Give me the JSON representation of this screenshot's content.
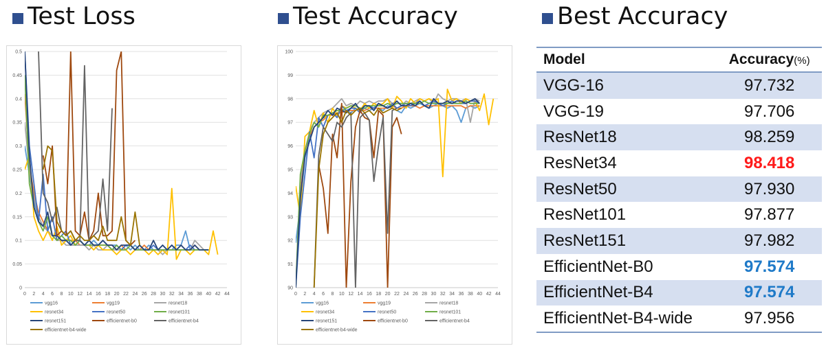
{
  "titles": {
    "loss": "Test Loss",
    "accuracy": "Test Accuracy",
    "best": "Best Accuracy"
  },
  "colors": {
    "title_marker": "#2f4f8f",
    "highlight_best": "#ff1a1a",
    "highlight_low": "#1f7ac8",
    "row_band": "#d6dff0"
  },
  "table": {
    "header_model": "Model",
    "header_accuracy": "Accuracy",
    "header_unit": "(%)",
    "rows": [
      {
        "model": "VGG-16",
        "accuracy": "97.732"
      },
      {
        "model": "VGG-19",
        "accuracy": "97.706"
      },
      {
        "model": "ResNet18",
        "accuracy": "98.259"
      },
      {
        "model": "ResNet34",
        "accuracy": "98.418"
      },
      {
        "model": "ResNet50",
        "accuracy": "97.930"
      },
      {
        "model": "ResNet101",
        "accuracy": "97.877"
      },
      {
        "model": "ResNet151",
        "accuracy": "97.982"
      },
      {
        "model": "EfficientNet-B0",
        "accuracy": "97.574"
      },
      {
        "model": "EfficientNet-B4",
        "accuracy": "97.574"
      },
      {
        "model": "EfficientNet-B4-wide",
        "accuracy": "97.956"
      }
    ]
  },
  "chart_data": [
    {
      "type": "line",
      "title": "Test Loss",
      "xlim": [
        0,
        44
      ],
      "ylim": [
        0,
        0.5
      ],
      "xticks": [
        "0",
        "2",
        "4",
        "6",
        "8",
        "10",
        "12",
        "14",
        "16",
        "18",
        "20",
        "22",
        "24",
        "26",
        "28",
        "30",
        "32",
        "34",
        "36",
        "38",
        "40",
        "42",
        "44"
      ],
      "yticks": [
        "0",
        "0.05",
        "0.1",
        "0.15",
        "0.2",
        "0.25",
        "0.3",
        "0.35",
        "0.4",
        "0.45",
        "0.5"
      ],
      "grid": true,
      "legend": "bottom",
      "series": [
        {
          "name": "vgg16",
          "color": "#5b9bd5",
          "values": [
            0.3,
            0.24,
            0.18,
            0.15,
            0.13,
            0.12,
            0.11,
            0.11,
            0.1,
            0.1,
            0.1,
            0.09,
            0.1,
            0.09,
            0.09,
            0.1,
            0.09,
            0.09,
            0.09,
            0.09,
            0.09,
            0.08,
            0.09,
            0.08,
            0.09,
            0.08,
            0.08,
            0.09,
            0.08,
            0.08,
            0.09,
            0.08,
            0.08,
            0.09,
            0.09,
            0.12,
            0.08,
            0.09,
            0.08,
            0.08,
            0.08
          ]
        },
        {
          "name": "vgg19",
          "color": "#ed7d31",
          "values": [
            0.41,
            0.26,
            0.2,
            0.16,
            0.14,
            0.12,
            0.11,
            0.11,
            0.1,
            0.1,
            0.1,
            0.1,
            0.09,
            0.09,
            0.09,
            0.09,
            0.09,
            0.09,
            0.09,
            0.09,
            0.08,
            0.09,
            0.08,
            0.09,
            0.08,
            0.08,
            0.09,
            0.08,
            0.08,
            0.08,
            0.08,
            0.08,
            0.08,
            0.08,
            0.08,
            0.08,
            0.08,
            0.09,
            0.08,
            0.08,
            0.08
          ]
        },
        {
          "name": "resnet18",
          "color": "#a5a5a5",
          "values": [
            0.35,
            0.25,
            0.19,
            0.15,
            0.13,
            0.12,
            0.11,
            0.1,
            0.1,
            0.09,
            0.09,
            0.09,
            0.09,
            0.09,
            0.08,
            0.09,
            0.08,
            0.08,
            0.09,
            0.08,
            0.08,
            0.08,
            0.08,
            0.09,
            0.08,
            0.08,
            0.08,
            0.08,
            0.08,
            0.08,
            0.07,
            0.08,
            0.08,
            0.08,
            0.09,
            0.08,
            0.08,
            0.1,
            0.09,
            0.08,
            0.08
          ]
        },
        {
          "name": "resnet34",
          "color": "#ffc000",
          "values": [
            0.25,
            0.28,
            0.15,
            0.12,
            0.1,
            0.12,
            0.1,
            0.13,
            0.09,
            0.1,
            0.11,
            0.09,
            0.1,
            0.09,
            0.09,
            0.08,
            0.09,
            0.08,
            0.08,
            0.08,
            0.07,
            0.08,
            0.08,
            0.07,
            0.08,
            0.09,
            0.08,
            0.07,
            0.08,
            0.07,
            0.08,
            0.07,
            0.21,
            0.06,
            0.08,
            0.08,
            0.07,
            0.08,
            0.08,
            0.08,
            0.07,
            0.12,
            0.07
          ]
        },
        {
          "name": "resnet50",
          "color": "#4472c4",
          "values": [
            0.5,
            0.3,
            0.22,
            0.14,
            0.24,
            0.12,
            0.15,
            0.1,
            0.11,
            0.12,
            0.09,
            0.1,
            0.1,
            0.09,
            0.1,
            0.09,
            0.09,
            0.1,
            0.09,
            0.08,
            0.09,
            0.08,
            0.09,
            0.09,
            0.08,
            0.09,
            0.08,
            0.08,
            0.09,
            0.08,
            0.08,
            0.08,
            0.09,
            0.08,
            0.08,
            0.08,
            0.09,
            0.08,
            0.08,
            0.08,
            0.08
          ]
        },
        {
          "name": "resnet101",
          "color": "#70ad47",
          "values": [
            0.45,
            0.22,
            0.17,
            0.14,
            0.12,
            0.15,
            0.11,
            0.1,
            0.11,
            0.1,
            0.1,
            0.09,
            0.1,
            0.09,
            0.09,
            0.09,
            0.09,
            0.09,
            0.09,
            0.08,
            0.09,
            0.08,
            0.08,
            0.09,
            0.08,
            0.08,
            0.08,
            0.08,
            0.08,
            0.08,
            0.08,
            0.08,
            0.08,
            0.08,
            0.08,
            0.08,
            0.08,
            0.08,
            0.08,
            0.08,
            0.08
          ]
        },
        {
          "name": "resnet151",
          "color": "#264478",
          "values": [
            0.5,
            0.28,
            0.17,
            0.14,
            0.13,
            0.16,
            0.11,
            0.11,
            0.1,
            0.1,
            0.09,
            0.1,
            0.1,
            0.09,
            0.1,
            0.09,
            0.09,
            0.1,
            0.09,
            0.09,
            0.08,
            0.09,
            0.09,
            0.09,
            0.08,
            0.09,
            0.08,
            0.08,
            0.1,
            0.08,
            0.09,
            0.08,
            0.09,
            0.08,
            0.09,
            0.08,
            0.08,
            0.09,
            0.08,
            0.08,
            0.08
          ]
        },
        {
          "name": "efficientnet-b0",
          "color": "#9e480e",
          "values": [
            null,
            null,
            null,
            null,
            0.28,
            0.22,
            0.3,
            0.11,
            0.12,
            0.11,
            0.5,
            0.12,
            0.11,
            0.16,
            0.1,
            0.12,
            0.2,
            0.11,
            0.11,
            0.12,
            0.46,
            0.5,
            0.1,
            0.09,
            0.1
          ]
        },
        {
          "name": "efficientnet-b4",
          "color": "#636363",
          "values": [
            null,
            null,
            null,
            0.5,
            0.2,
            0.18,
            0.14,
            0.17,
            0.12,
            0.11,
            0.12,
            0.1,
            0.1,
            0.47,
            0.1,
            0.11,
            0.12,
            0.23,
            0.12,
            0.38
          ]
        },
        {
          "name": "efficientnet-b4-wide",
          "color": "#997300",
          "values": [
            null,
            null,
            null,
            null,
            0.25,
            0.3,
            0.29,
            0.14,
            0.12,
            0.11,
            0.12,
            0.1,
            0.11,
            0.1,
            0.1,
            0.11,
            0.1,
            0.13,
            0.1,
            0.1,
            0.1,
            0.15,
            0.1,
            0.09,
            0.16,
            0.09
          ]
        }
      ]
    },
    {
      "type": "line",
      "title": "Test Accuracy",
      "xlim": [
        0,
        44
      ],
      "ylim": [
        90,
        100
      ],
      "xticks": [
        "0",
        "2",
        "4",
        "6",
        "8",
        "10",
        "12",
        "14",
        "16",
        "18",
        "20",
        "22",
        "24",
        "26",
        "28",
        "30",
        "32",
        "34",
        "36",
        "38",
        "40",
        "42",
        "44"
      ],
      "yticks": [
        "90",
        "91",
        "92",
        "93",
        "94",
        "95",
        "96",
        "97",
        "98",
        "99",
        "100"
      ],
      "grid": true,
      "legend": "bottom",
      "series": [
        {
          "name": "vgg16",
          "color": "#5b9bd5",
          "values": [
            91.9,
            93.5,
            95.5,
            96.2,
            96.8,
            97.0,
            97.2,
            97.3,
            97.4,
            97.3,
            97.5,
            97.5,
            97.4,
            97.6,
            97.5,
            97.6,
            97.5,
            97.6,
            97.6,
            97.5,
            97.7,
            97.6,
            97.5,
            97.4,
            97.7,
            97.6,
            97.7,
            97.8,
            97.7,
            97.6,
            97.7,
            97.8,
            97.7,
            97.6,
            97.7,
            97.5,
            97.0,
            97.6,
            97.7,
            97.6,
            97.7
          ]
        },
        {
          "name": "vgg19",
          "color": "#ed7d31",
          "values": [
            90.0,
            94.0,
            95.8,
            96.4,
            96.8,
            97.0,
            97.1,
            97.3,
            97.3,
            97.4,
            97.4,
            97.5,
            97.5,
            97.5,
            97.6,
            97.5,
            97.6,
            97.6,
            97.6,
            97.6,
            97.6,
            97.7,
            97.6,
            97.6,
            97.7,
            97.7,
            97.7,
            97.6,
            97.7,
            97.7,
            97.7,
            97.7,
            97.7,
            97.7,
            97.7,
            97.7,
            97.7,
            97.6,
            97.7,
            97.7,
            97.7
          ]
        },
        {
          "name": "resnet18",
          "color": "#a5a5a5",
          "values": [
            90.0,
            94.5,
            95.8,
            96.6,
            97.0,
            97.2,
            97.4,
            97.5,
            97.6,
            97.8,
            98.0,
            97.7,
            97.8,
            97.7,
            97.9,
            97.8,
            97.9,
            97.8,
            97.9,
            97.9,
            98.0,
            97.8,
            97.9,
            97.7,
            97.9,
            97.8,
            97.9,
            98.0,
            97.9,
            98.0,
            97.8,
            98.2,
            98.0,
            97.9,
            98.0,
            98.0,
            97.9,
            98.0,
            97.0,
            98.0,
            97.9
          ]
        },
        {
          "name": "resnet34",
          "color": "#ffc000",
          "values": [
            94.3,
            93.0,
            96.4,
            96.6,
            97.5,
            96.8,
            97.4,
            97.0,
            97.6,
            97.3,
            97.7,
            97.6,
            97.7,
            97.6,
            97.5,
            97.8,
            97.6,
            97.8,
            97.7,
            97.8,
            98.0,
            97.6,
            98.1,
            97.9,
            97.6,
            98.0,
            97.8,
            98.0,
            97.9,
            98.0,
            97.9,
            98.0,
            94.7,
            98.4,
            97.9,
            98.0,
            97.8,
            98.0,
            97.9,
            97.9,
            97.5,
            98.2,
            96.9,
            98.0
          ]
        },
        {
          "name": "resnet50",
          "color": "#4472c4",
          "values": [
            90.0,
            93.0,
            94.8,
            96.6,
            95.5,
            97.2,
            96.8,
            97.3,
            97.4,
            97.2,
            97.7,
            97.5,
            97.6,
            97.6,
            97.4,
            97.7,
            97.7,
            97.6,
            97.8,
            97.7,
            97.6,
            97.8,
            97.6,
            97.7,
            97.8,
            97.7,
            97.8,
            97.9,
            97.7,
            97.8,
            97.9,
            97.8,
            97.7,
            97.8,
            97.9,
            97.8,
            97.8,
            97.8,
            97.9,
            97.9,
            97.8
          ]
        },
        {
          "name": "resnet101",
          "color": "#70ad47",
          "values": [
            90.0,
            94.8,
            95.8,
            96.5,
            97.0,
            96.8,
            97.3,
            97.3,
            97.4,
            97.5,
            97.5,
            97.6,
            97.7,
            97.7,
            97.6,
            97.6,
            97.7,
            97.7,
            97.7,
            97.7,
            97.8,
            97.7,
            97.8,
            97.8,
            97.8,
            97.8,
            97.8,
            97.8,
            97.9,
            97.8,
            97.8,
            97.8,
            97.8,
            97.8,
            97.8,
            97.8,
            97.8,
            97.9,
            97.8,
            97.8,
            97.8
          ]
        },
        {
          "name": "resnet151",
          "color": "#264478",
          "values": [
            90.0,
            93.8,
            95.6,
            96.2,
            96.8,
            97.0,
            97.2,
            97.5,
            97.3,
            97.6,
            97.5,
            97.4,
            97.6,
            97.8,
            97.5,
            97.7,
            97.7,
            97.5,
            97.8,
            97.7,
            97.6,
            97.7,
            97.9,
            97.7,
            97.7,
            97.8,
            97.7,
            97.9,
            97.7,
            97.6,
            98.0,
            97.8,
            97.8,
            97.9,
            97.8,
            97.9,
            97.9,
            97.8,
            97.9,
            98.0,
            97.8
          ]
        },
        {
          "name": "efficientnet-b0",
          "color": "#9e480e",
          "values": [
            null,
            null,
            null,
            null,
            null,
            95.2,
            94.2,
            92.3,
            96.5,
            95.5,
            97.8,
            90.0,
            94.5,
            96.8,
            97.5,
            97.2,
            97.1,
            95.5,
            97.5,
            97.3,
            90.0,
            96.8,
            97.2,
            96.5
          ]
        },
        {
          "name": "efficientnet-b4",
          "color": "#636363",
          "values": [
            null,
            null,
            null,
            null,
            90.0,
            95.6,
            96.8,
            96.5,
            96.2,
            97.0,
            96.8,
            97.2,
            97.4,
            90.0,
            97.2,
            97.4,
            97.1,
            94.5,
            96.0,
            97.2,
            92.3,
            97.5,
            97.6
          ]
        },
        {
          "name": "efficientnet-b4-wide",
          "color": "#997300",
          "values": [
            null,
            null,
            null,
            null,
            90.0,
            95.0,
            96.5,
            97.0,
            97.2,
            97.4,
            97.0,
            97.5,
            97.3,
            97.5,
            97.6,
            97.4,
            97.5,
            97.3,
            97.6,
            97.4,
            97.5,
            97.6,
            97.5,
            97.6
          ]
        }
      ]
    }
  ]
}
